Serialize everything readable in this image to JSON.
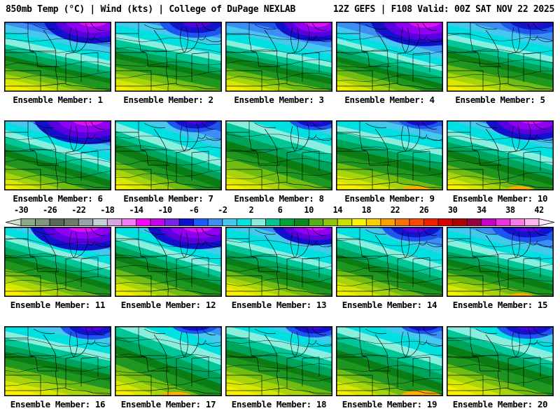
{
  "header": {
    "left": "850mb Temp (°C) | Wind (kts) | College of DuPage NEXLAB",
    "right": "12Z GEFS | F108 Valid: 00Z SAT NOV 22 2025"
  },
  "panels": [
    {
      "member": 1,
      "label": "Ensemble Member: 1"
    },
    {
      "member": 2,
      "label": "Ensemble Member: 2"
    },
    {
      "member": 3,
      "label": "Ensemble Member: 3"
    },
    {
      "member": 4,
      "label": "Ensemble Member: 4"
    },
    {
      "member": 5,
      "label": "Ensemble Member: 5"
    },
    {
      "member": 6,
      "label": "Ensemble Member: 6"
    },
    {
      "member": 7,
      "label": "Ensemble Member: 7"
    },
    {
      "member": 8,
      "label": "Ensemble Member: 8"
    },
    {
      "member": 9,
      "label": "Ensemble Member: 9"
    },
    {
      "member": 10,
      "label": "Ensemble Member: 10"
    },
    {
      "member": 11,
      "label": "Ensemble Member: 11"
    },
    {
      "member": 12,
      "label": "Ensemble Member: 12"
    },
    {
      "member": 13,
      "label": "Ensemble Member: 13"
    },
    {
      "member": 14,
      "label": "Ensemble Member: 14"
    },
    {
      "member": 15,
      "label": "Ensemble Member: 15"
    },
    {
      "member": 16,
      "label": "Ensemble Member: 16"
    },
    {
      "member": 17,
      "label": "Ensemble Member: 17"
    },
    {
      "member": 18,
      "label": "Ensemble Member: 18"
    },
    {
      "member": 19,
      "label": "Ensemble Member: 19"
    },
    {
      "member": 20,
      "label": "Ensemble Member: 20"
    }
  ],
  "colorbar": {
    "unit": "°C",
    "ticks": [
      "-30",
      "-26",
      "-22",
      "-18",
      "-14",
      "-10",
      "-6",
      "-2",
      "2",
      "6",
      "10",
      "14",
      "18",
      "22",
      "26",
      "30",
      "34",
      "38",
      "42"
    ],
    "segment_colors": [
      "#8da788",
      "#7c997b",
      "#5d685d",
      "#6f7a6f",
      "#96a1ab",
      "#c7ced4",
      "#d5a6e3",
      "#ef7cf0",
      "#fb00fb",
      "#c900ef",
      "#7722ee",
      "#0f0fd0",
      "#1e5aff",
      "#3c8ef5",
      "#45c8ee",
      "#00e4e4",
      "#8aeede",
      "#00c795",
      "#00a335",
      "#0a8a1e",
      "#55ad17",
      "#8cc40e",
      "#c8e000",
      "#fbf600",
      "#fcd000",
      "#fca000",
      "#fc7000",
      "#fc4800",
      "#f32000",
      "#d80000",
      "#b00000",
      "#960040",
      "#c800c8",
      "#ee30dc",
      "#fa78e8",
      "#fdb4ef"
    ],
    "arrow_left_color": "#cfe2c8",
    "arrow_right_color": "#fde9f7"
  },
  "chart_data": {
    "type": "heatmap",
    "description": "4x5 grid of filled-contour 850mb temperature maps over the Midwest/Great Lakes, one per GEFS ensemble member",
    "field": "850mb Temp (°C)",
    "overlay": "Wind (kts)",
    "source": "College of DuPage NEXLAB",
    "model": "GEFS",
    "cycle": "12Z",
    "forecast_hour": "F108",
    "valid_time": "00Z SAT NOV 22 2025",
    "members": [
      1,
      2,
      3,
      4,
      5,
      6,
      7,
      8,
      9,
      10,
      11,
      12,
      13,
      14,
      15,
      16,
      17,
      18,
      19,
      20
    ],
    "colorbar_values": [
      -30,
      -26,
      -22,
      -18,
      -14,
      -10,
      -6,
      -2,
      2,
      6,
      10,
      14,
      18,
      22,
      26,
      30,
      34,
      38,
      42
    ],
    "colorbar_interval_per_segment": 2,
    "legend_position": "between rows 2 and 3, full width"
  }
}
